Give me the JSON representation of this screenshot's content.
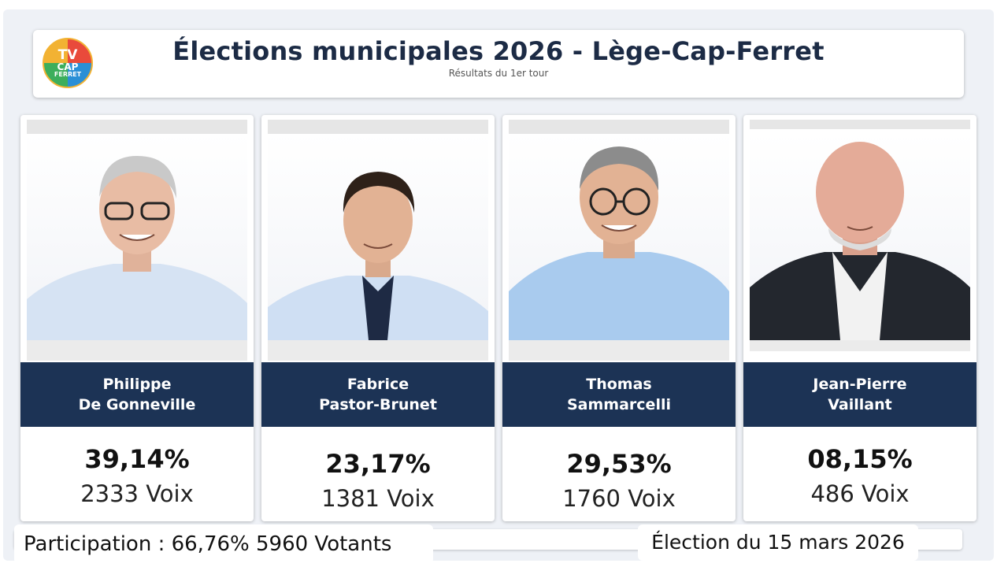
{
  "header": {
    "logo": {
      "line1": "TV",
      "line2": "CAP",
      "line3": "FERRET"
    },
    "title": "Élections municipales 2026 - Lège-Cap-Ferret",
    "subtitle": "Résultats du 1er tour"
  },
  "candidates": [
    {
      "first": "Philippe",
      "last": "De Gonneville",
      "percent": "39,14%",
      "votes": "2333 Voix",
      "shirt": "#d6e3f3",
      "jacket": ""
    },
    {
      "first": "Fabrice",
      "last": "Pastor-Brunet",
      "percent": "23,17%",
      "votes": "1381 Voix",
      "shirt": "#cfdff3",
      "jacket": ""
    },
    {
      "first": "Thomas",
      "last": "Sammarcelli",
      "percent": "29,53%",
      "votes": "1760 Voix",
      "shirt": "#a9cbee",
      "jacket": ""
    },
    {
      "first": "Jean-Pierre",
      "last": "Vaillant",
      "percent": "08,15%",
      "votes": "486 Voix",
      "shirt": "#f2f2f2",
      "jacket": "#23272e"
    }
  ],
  "footer": {
    "participation": "Participation : 66,76% 5960 Votants",
    "date": "Élection du 15 mars 2026"
  },
  "colors": {
    "name_band": "#1c3355",
    "title": "#1c2b45"
  }
}
